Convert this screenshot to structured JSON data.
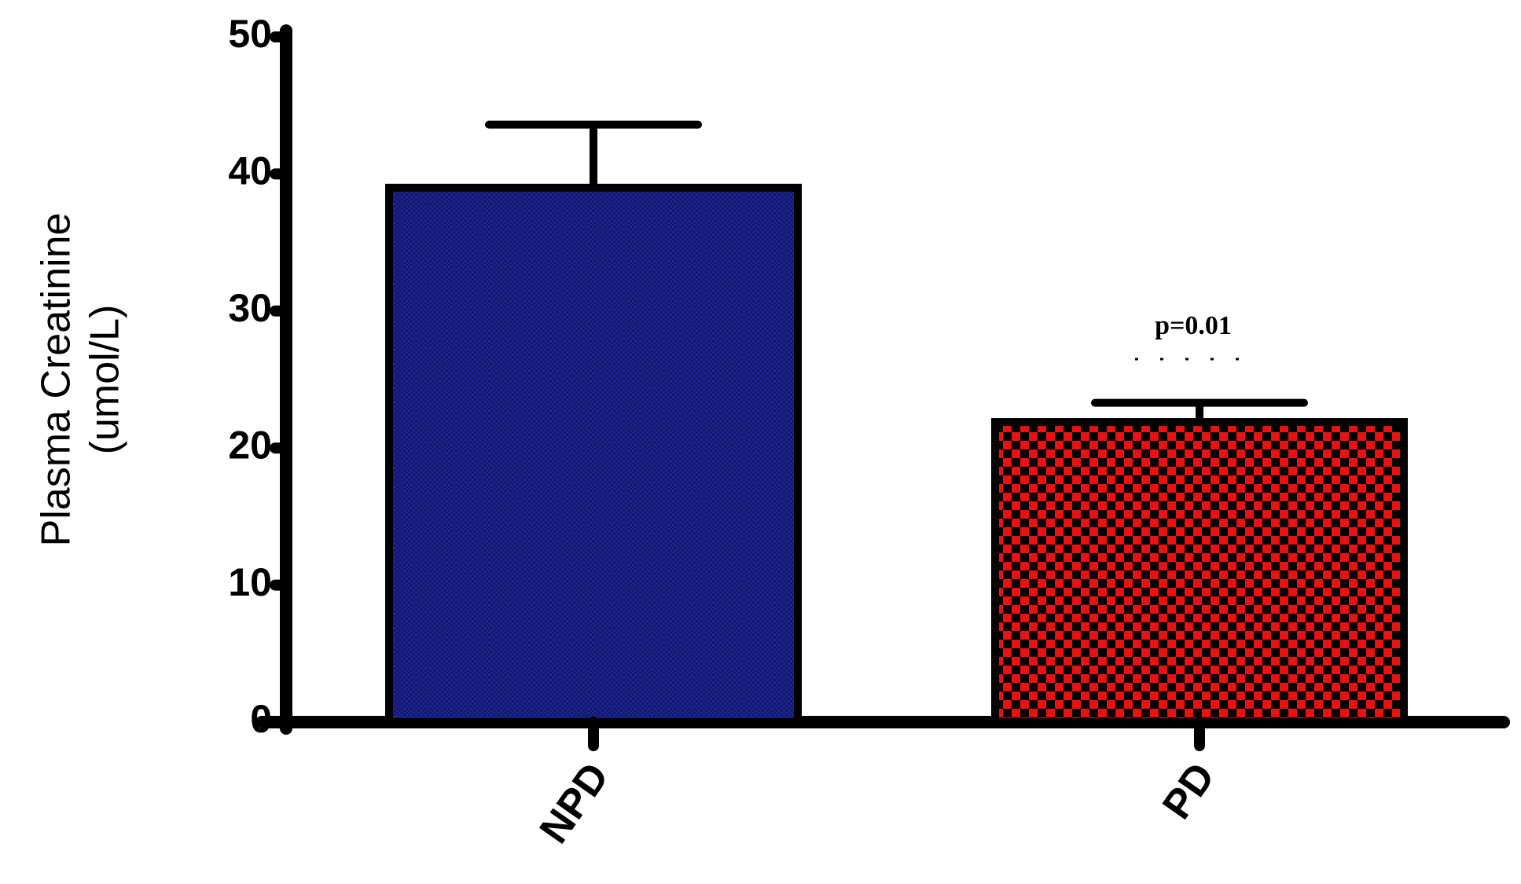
{
  "chart_data": {
    "type": "bar",
    "y_label": [
      "Plasma Creatinine",
      "(umol/L)"
    ],
    "categories": [
      "NPD",
      "PD"
    ],
    "values": [
      39,
      21.9
    ],
    "errors": [
      4.6,
      1.4
    ],
    "colors": [
      "#1c2596",
      "#ea1111"
    ],
    "ylim": [
      0,
      50
    ],
    "yticks": [
      0,
      10,
      20,
      30,
      40,
      50
    ],
    "annotation": "p=0.01"
  }
}
